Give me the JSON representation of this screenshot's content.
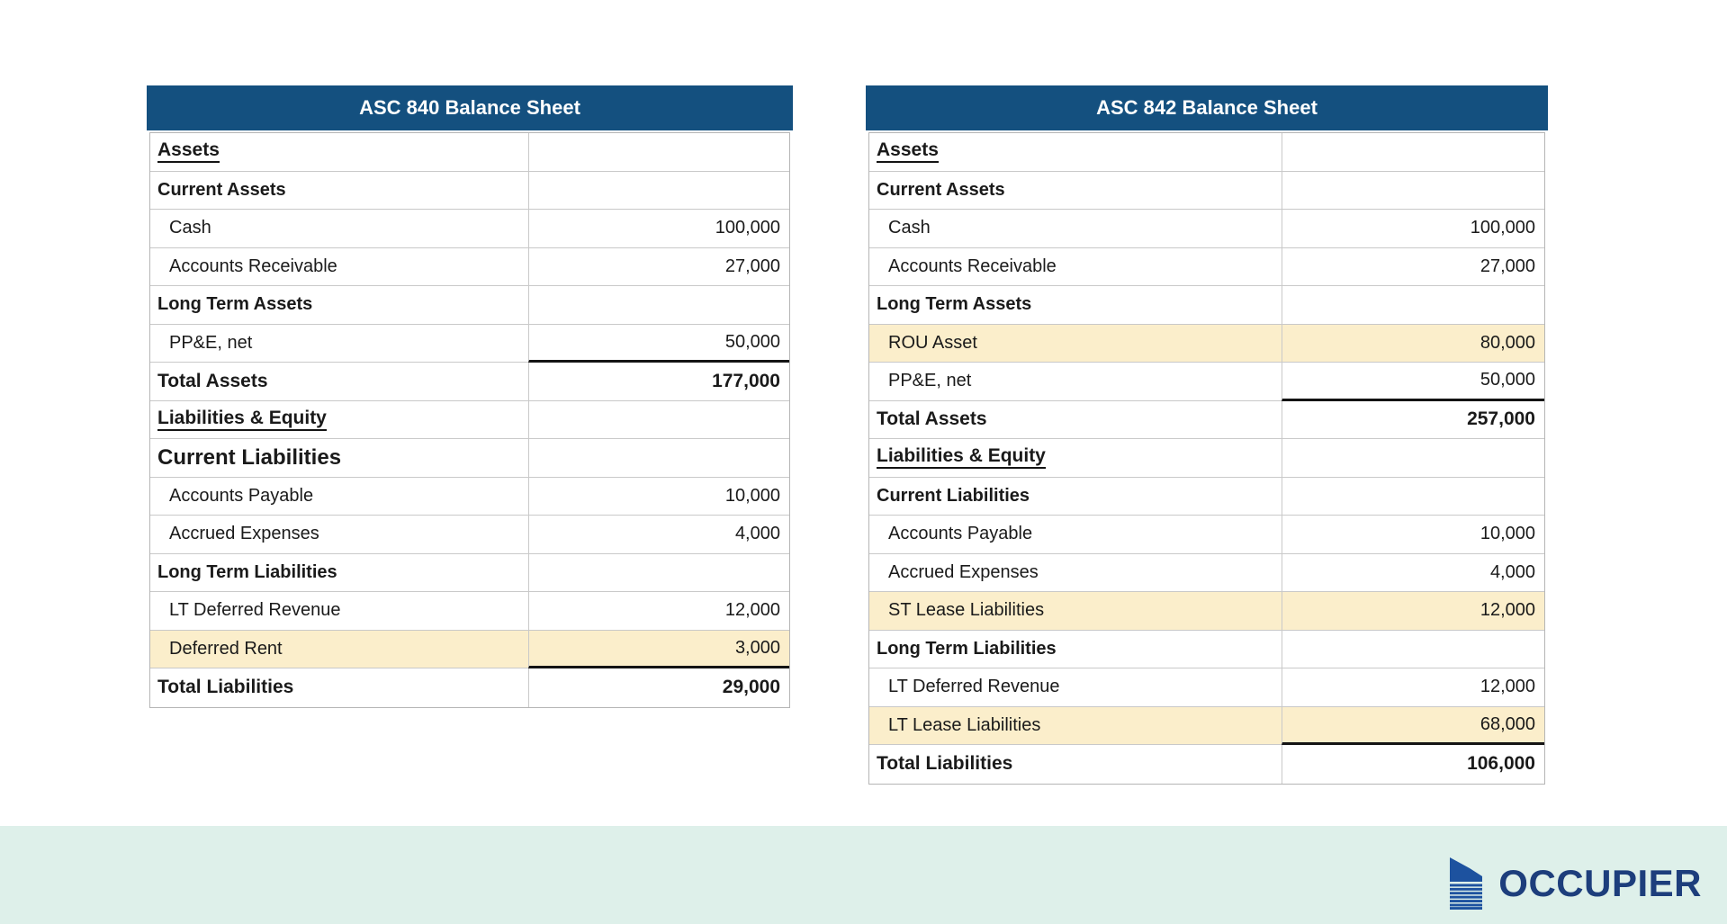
{
  "colors": {
    "header_bg": "#14507f",
    "header_text": "#ffffff",
    "highlight": "#fbeecb",
    "grid": "#c9c9c9",
    "text": "#1a1a1a",
    "footer_band": "#def0ea"
  },
  "tables": [
    {
      "title": "ASC 840 Balance Sheet",
      "rows": [
        {
          "label": "Assets",
          "value": "",
          "style": "heading",
          "highlight": false
        },
        {
          "label": "Current Assets",
          "value": "",
          "style": "section",
          "highlight": false
        },
        {
          "label": "Cash",
          "value": "100,000",
          "style": "item",
          "highlight": false
        },
        {
          "label": "Accounts Receivable",
          "value": "27,000",
          "style": "item",
          "highlight": false
        },
        {
          "label": "Long Term Assets",
          "value": "",
          "style": "section",
          "highlight": false
        },
        {
          "label": "PP&E, net",
          "value": "50,000",
          "style": "item",
          "highlight": false
        },
        {
          "label": "Total Assets",
          "value": "177,000",
          "style": "total",
          "highlight": false
        },
        {
          "label": "Liabilities & Equity",
          "value": "",
          "style": "heading",
          "highlight": false
        },
        {
          "label": "Current Liabilities",
          "value": "",
          "style": "section-large",
          "highlight": false
        },
        {
          "label": "Accounts Payable",
          "value": "10,000",
          "style": "item",
          "highlight": false
        },
        {
          "label": "Accrued Expenses",
          "value": "4,000",
          "style": "item",
          "highlight": false
        },
        {
          "label": "Long Term Liabilities",
          "value": "",
          "style": "section",
          "highlight": false
        },
        {
          "label": "LT Deferred Revenue",
          "value": "12,000",
          "style": "item",
          "highlight": false
        },
        {
          "label": "Deferred Rent",
          "value": "3,000",
          "style": "item",
          "highlight": true
        },
        {
          "label": "Total Liabilities",
          "value": "29,000",
          "style": "total",
          "highlight": false
        }
      ]
    },
    {
      "title": "ASC 842 Balance Sheet",
      "rows": [
        {
          "label": "Assets",
          "value": "",
          "style": "heading",
          "highlight": false
        },
        {
          "label": "Current Assets",
          "value": "",
          "style": "section",
          "highlight": false
        },
        {
          "label": "Cash",
          "value": "100,000",
          "style": "item",
          "highlight": false
        },
        {
          "label": "Accounts Receivable",
          "value": "27,000",
          "style": "item",
          "highlight": false
        },
        {
          "label": "Long Term Assets",
          "value": "",
          "style": "section",
          "highlight": false
        },
        {
          "label": "ROU Asset",
          "value": "80,000",
          "style": "item",
          "highlight": true
        },
        {
          "label": "PP&E, net",
          "value": "50,000",
          "style": "item",
          "highlight": false
        },
        {
          "label": "Total Assets",
          "value": "257,000",
          "style": "total",
          "highlight": false
        },
        {
          "label": "Liabilities & Equity",
          "value": "",
          "style": "heading",
          "highlight": false
        },
        {
          "label": "Current Liabilities",
          "value": "",
          "style": "section",
          "highlight": false
        },
        {
          "label": "Accounts Payable",
          "value": "10,000",
          "style": "item",
          "highlight": false
        },
        {
          "label": "Accrued Expenses",
          "value": "4,000",
          "style": "item",
          "highlight": false
        },
        {
          "label": "ST Lease Liabilities",
          "value": "12,000",
          "style": "item",
          "highlight": true
        },
        {
          "label": "Long Term Liabilities",
          "value": "",
          "style": "section",
          "highlight": false
        },
        {
          "label": "LT Deferred Revenue",
          "value": "12,000",
          "style": "item",
          "highlight": false
        },
        {
          "label": "LT Lease Liabilities",
          "value": "68,000",
          "style": "item",
          "highlight": true
        },
        {
          "label": "Total Liabilities",
          "value": "106,000",
          "style": "total",
          "highlight": false
        }
      ]
    }
  ],
  "logo": {
    "text": "OCCUPIER",
    "icon": "building-icon",
    "icon_color": "#1d529f",
    "text_color": "#1d3e7c"
  }
}
